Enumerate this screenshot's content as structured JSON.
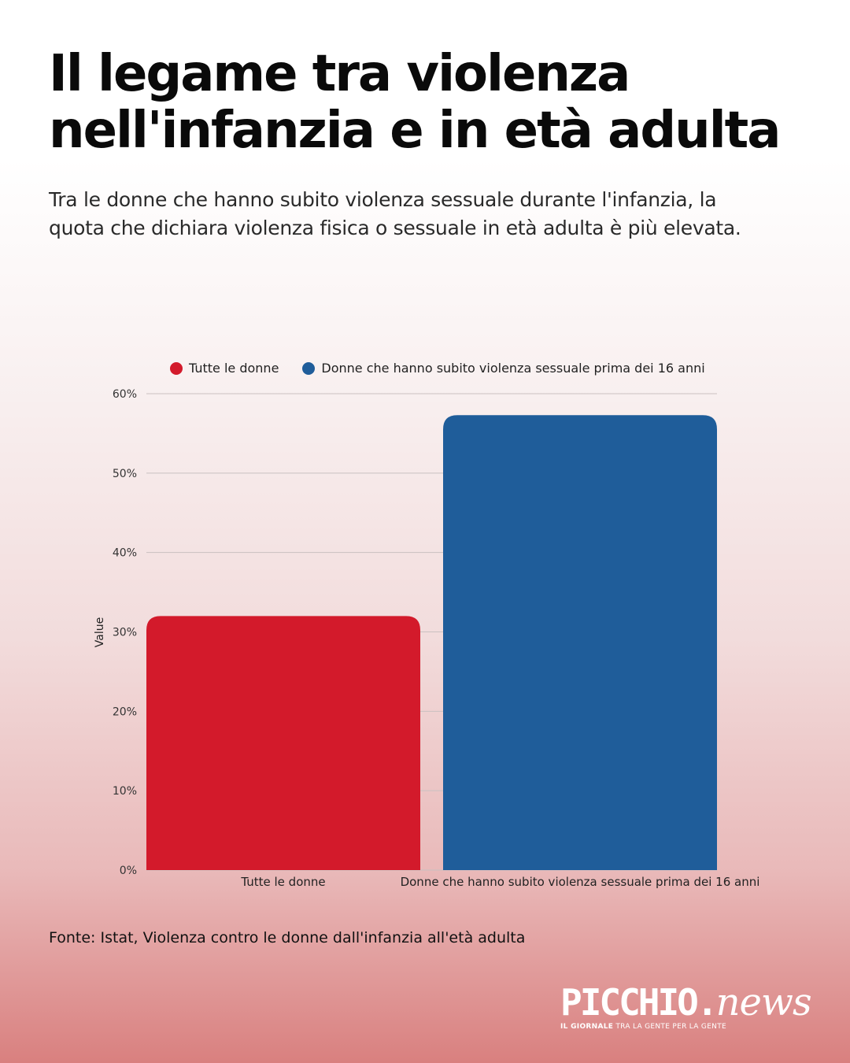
{
  "header": {
    "title": "Il legame tra violenza nell'infanzia e in età adulta",
    "subtitle": "Tra le donne che hanno subito violenza sessuale durante l'infanzia, la quota che dichiara violenza fisica o sessuale in età adulta è più elevata."
  },
  "chart_data": {
    "type": "bar",
    "categories": [
      "Tutte le donne",
      "Donne che hanno subito violenza sessuale prima dei 16 anni"
    ],
    "values": [
      32,
      57.3
    ],
    "series": [
      {
        "name": "Tutte le donne",
        "value": 32,
        "color": "#d31a2b"
      },
      {
        "name": "Donne che hanno subito violenza sessuale prima dei 16 anni",
        "value": 57.3,
        "color": "#1f5d9a"
      }
    ],
    "ylabel": "Value",
    "ylim": [
      0,
      60
    ],
    "yticks": [
      "0%",
      "10%",
      "20%",
      "30%",
      "40%",
      "50%",
      "60%"
    ],
    "grid": true,
    "legend_position": "top-left"
  },
  "footer": {
    "source": "Fonte: Istat, Violenza contro le donne dall'infanzia all'età adulta"
  },
  "logo": {
    "word": "PICCHIO.",
    "news": "news",
    "tag_bold": "IL GIORNALE",
    "tag_rest": " TRA LA GENTE PER LA GENTE"
  }
}
